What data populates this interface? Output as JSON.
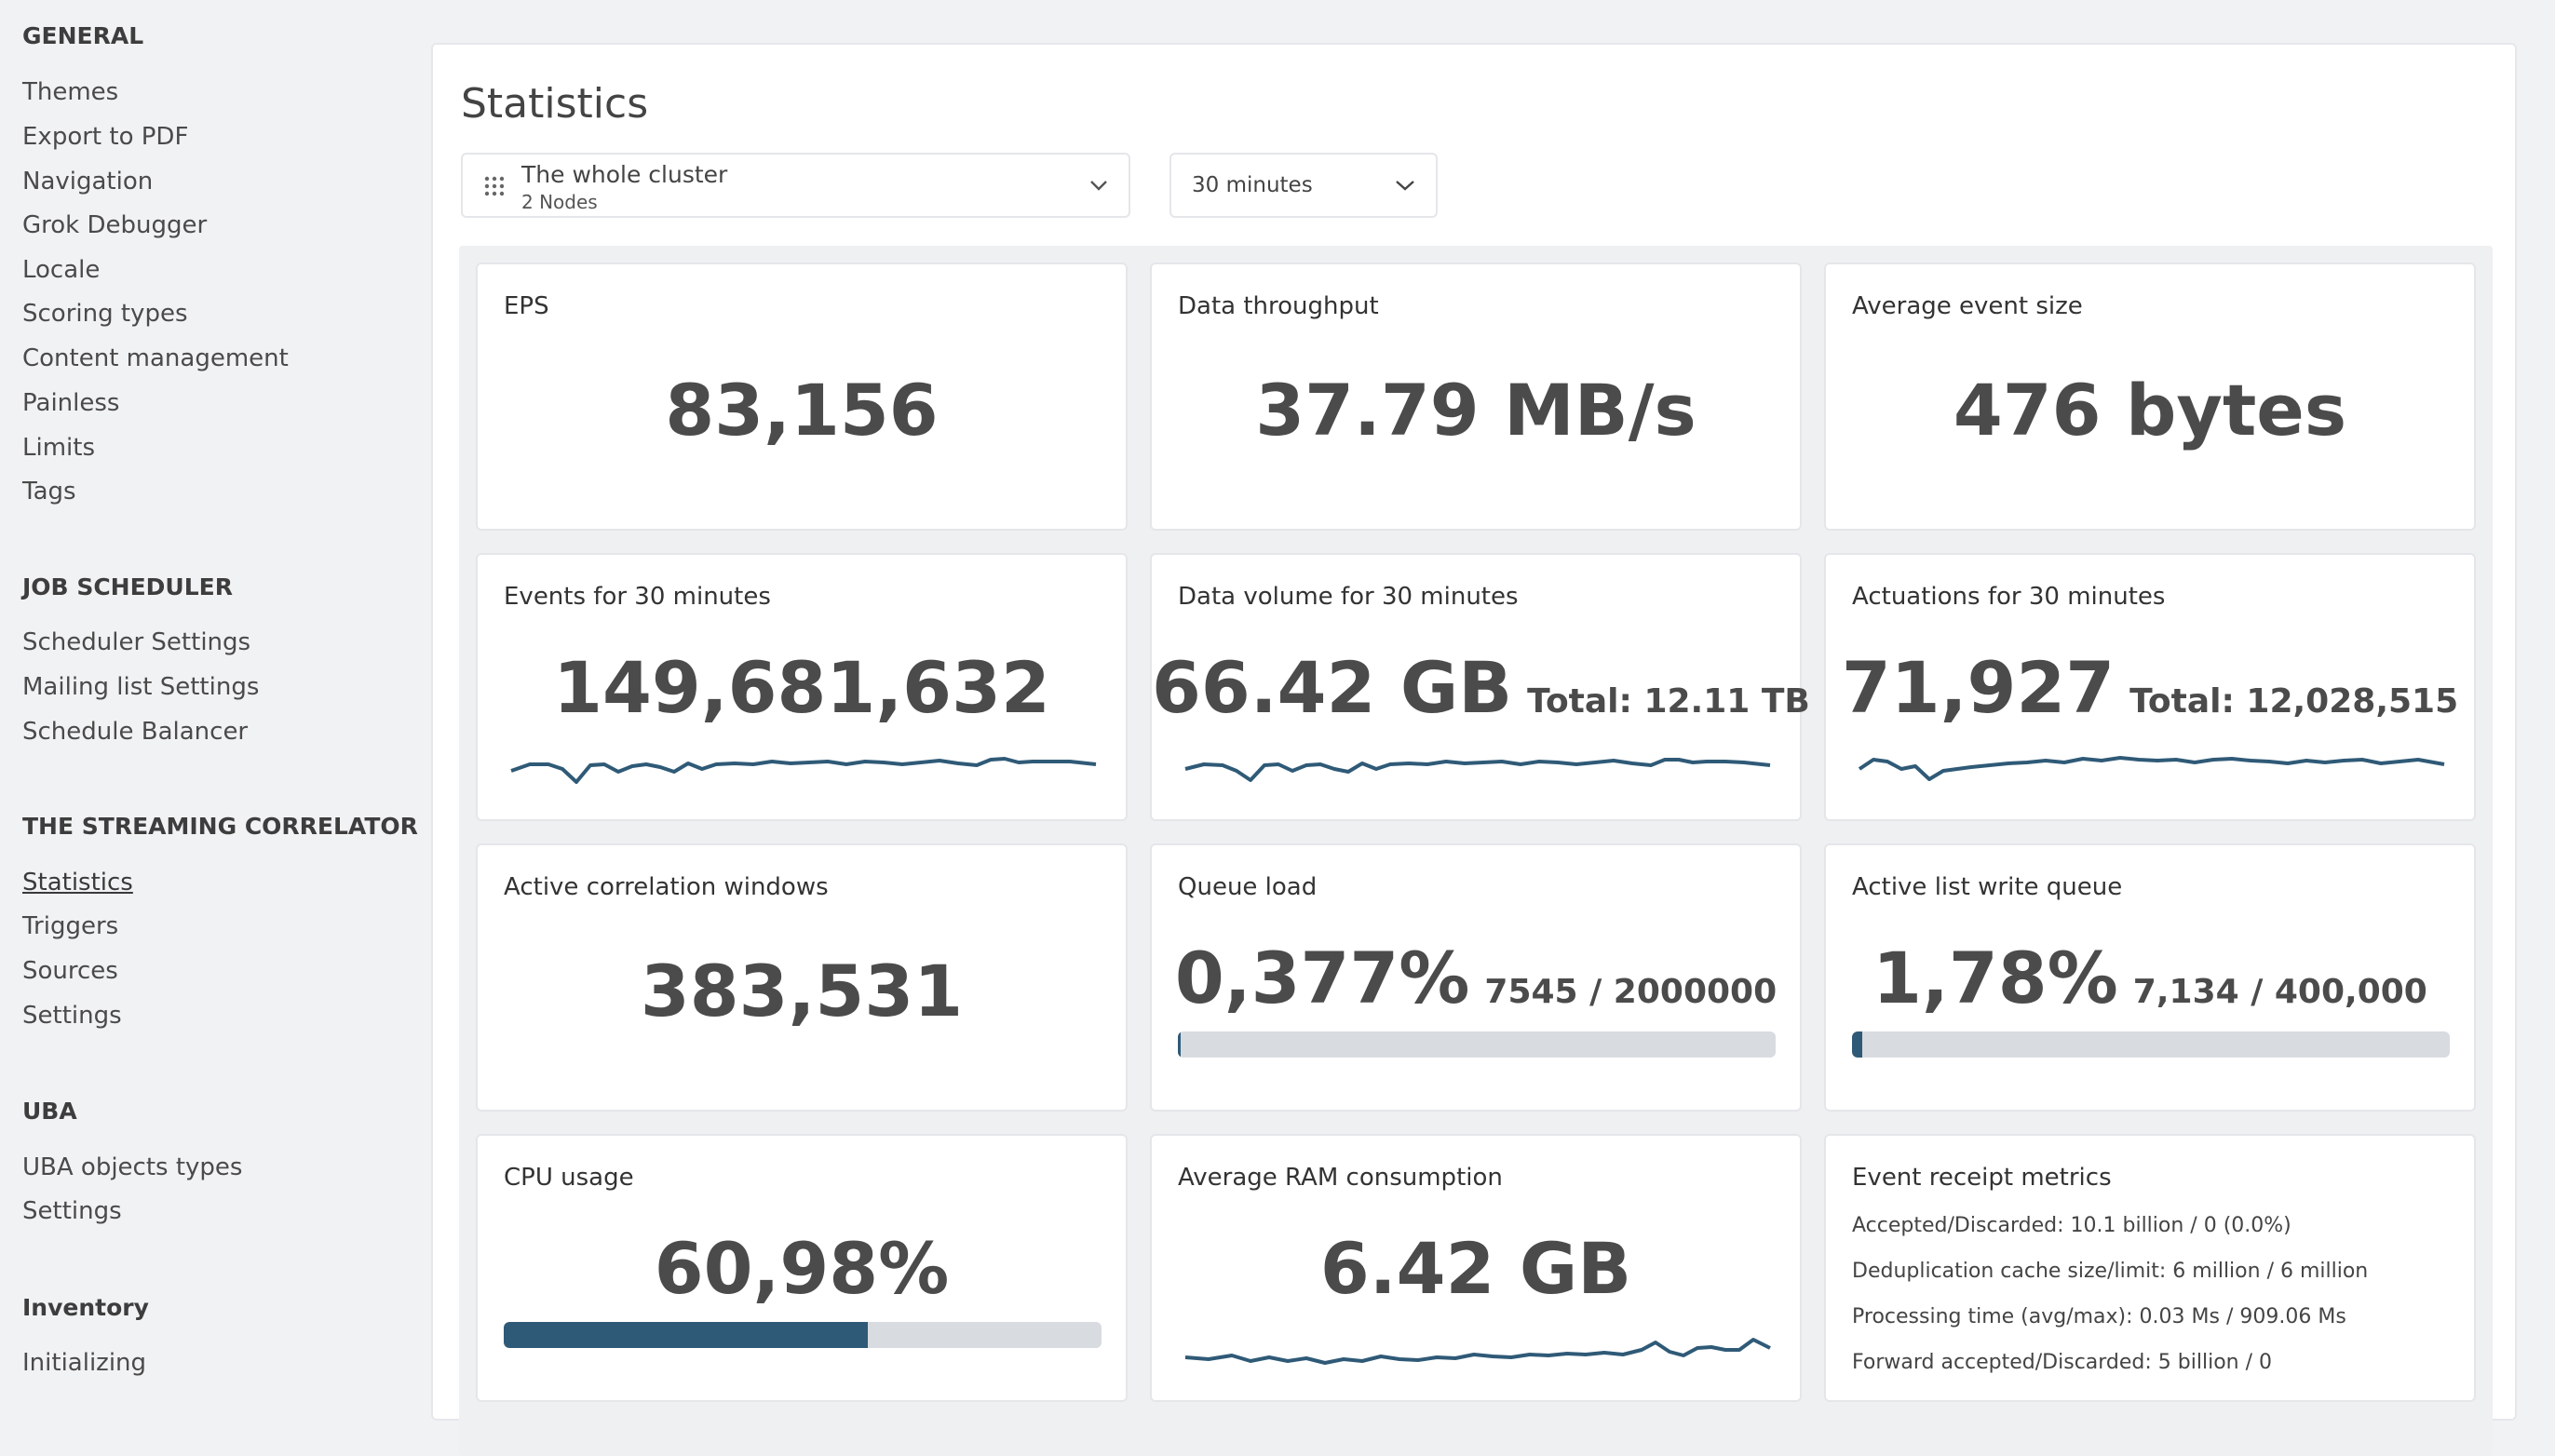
{
  "sidebar": {
    "sections": [
      {
        "heading": "GENERAL",
        "items": [
          "Themes",
          "Export to PDF",
          "Navigation",
          "Grok Debugger",
          "Locale",
          "Scoring types",
          "Content management",
          "Painless",
          "Limits",
          "Tags"
        ]
      },
      {
        "heading": "JOB SCHEDULER",
        "items": [
          "Scheduler Settings",
          "Mailing list Settings",
          "Schedule Balancer"
        ]
      },
      {
        "heading": "THE STREAMING CORRELATOR",
        "items": [
          "Statistics",
          "Triggers",
          "Sources",
          "Settings"
        ]
      },
      {
        "heading": "UBA",
        "items": [
          "UBA objects types",
          "Settings"
        ]
      },
      {
        "heading": "Inventory",
        "items": [
          "Initializing"
        ]
      }
    ],
    "active_item": "Statistics"
  },
  "page": {
    "title": "Statistics"
  },
  "filters": {
    "node_select": {
      "value": "The whole cluster",
      "sub": "2 Nodes",
      "icon": "grid-icon"
    },
    "period_select": {
      "value": "30 minutes"
    }
  },
  "colors": {
    "accent": "#2f5a77",
    "bar_track": "#d8dbe0",
    "text_big": "#4b4b4b"
  },
  "cards": {
    "eps": {
      "title": "EPS",
      "value": "83,156"
    },
    "throughput": {
      "title": "Data throughput",
      "value": "37.79 MB/s"
    },
    "event_size": {
      "title": "Average event size",
      "value": "476 bytes"
    },
    "events": {
      "title": "Events for 30 minutes",
      "value": "149,681,632"
    },
    "data_volume": {
      "title": "Data volume for 30 minutes",
      "value": "66.42 GB",
      "total": "Total: 12.11 TB"
    },
    "actuations": {
      "title": "Actuations for 30 minutes",
      "value": "71,927",
      "total": "Total: 12,028,515"
    },
    "windows": {
      "title": "Active correlation windows",
      "value": "383,531"
    },
    "queue_load": {
      "title": "Queue load",
      "value": "0,377%",
      "detail": "7545 / 2000000",
      "progress": 0.00377
    },
    "list_queue": {
      "title": "Active list write queue",
      "value": "1,78%",
      "detail": "7,134 / 400,000",
      "progress": 0.0178
    },
    "cpu": {
      "title": "CPU usage",
      "value": "60,98%",
      "progress": 0.6098
    },
    "ram": {
      "title": "Average RAM consumption",
      "value": "6.42 GB"
    },
    "receipt": {
      "title": "Event receipt metrics",
      "lines": [
        "Accepted/Discarded: 10.1 billion / 0 (0.0%)",
        "Deduplication cache size/limit: 6 million / 6 million",
        "Processing time (avg/max): 0.03 Ms / 909.06 Ms",
        "Forward accepted/Discarded: 5 billion / 0"
      ]
    }
  }
}
